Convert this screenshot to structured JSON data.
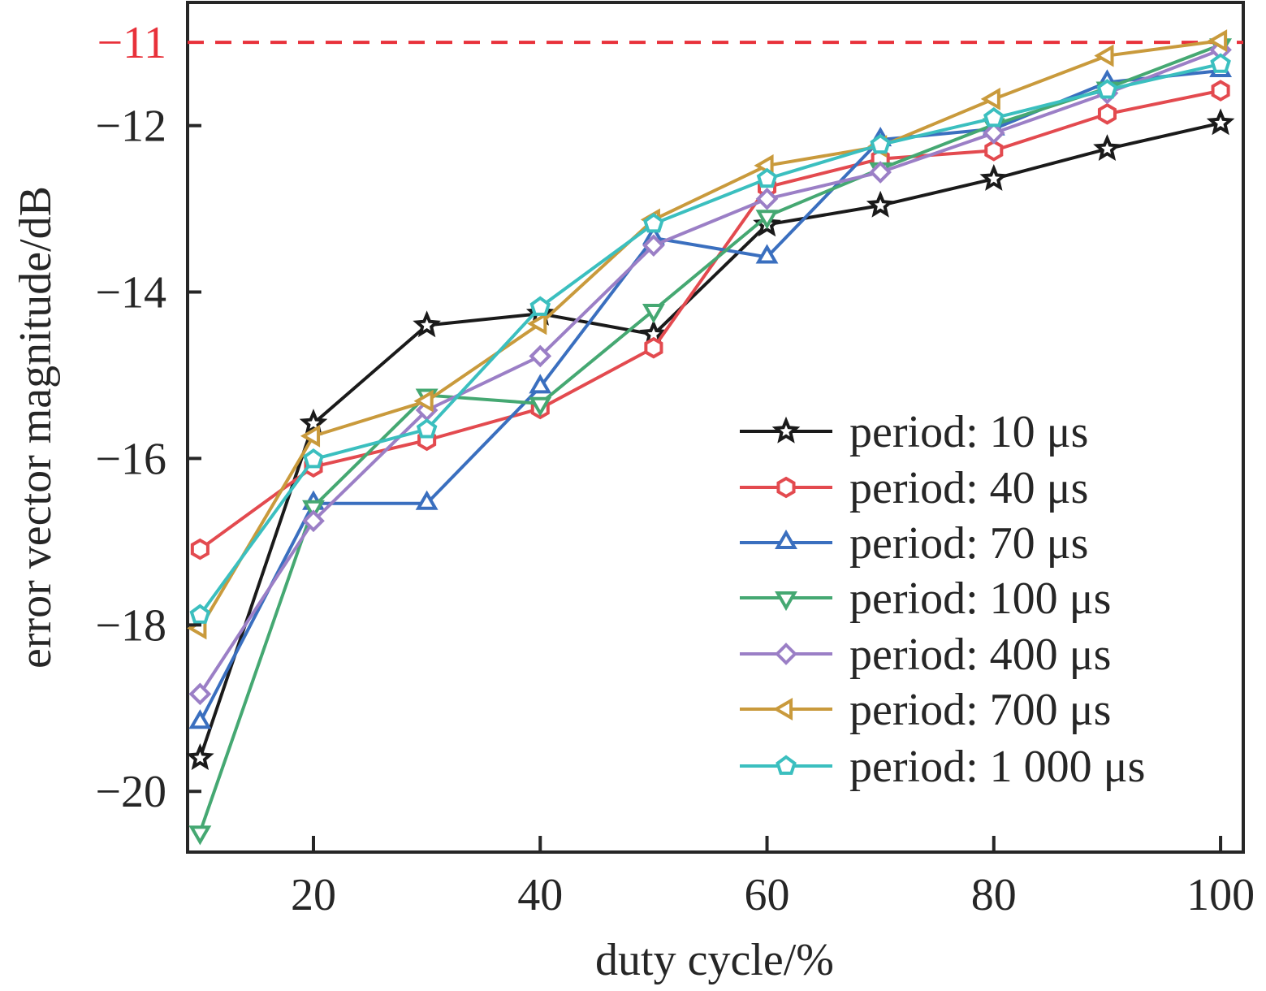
{
  "chart_data": {
    "type": "line",
    "title": "",
    "xlabel": "duty cycle/%",
    "ylabel": "error vector magnitude/dB",
    "xlim": [
      8.9,
      102
    ],
    "ylim": [
      -20.73,
      -10.52
    ],
    "xticks": [
      20,
      40,
      60,
      80,
      100
    ],
    "xtick_labels": [
      "20",
      "40",
      "60",
      "80",
      "100"
    ],
    "yticks": [
      -12,
      -14,
      -16,
      -18,
      -20
    ],
    "ytick_labels": [
      "−12",
      "−14",
      "−16",
      "−18",
      "−20"
    ],
    "grid": false,
    "legend_position": "lower-right",
    "threshold": {
      "value": -11,
      "label": "−11",
      "color": "#e8313a",
      "style": "dashed"
    },
    "x": [
      10,
      20,
      30,
      40,
      50,
      60,
      70,
      80,
      90,
      100
    ],
    "series": [
      {
        "name": "period: 10 μs",
        "color": "#1a1a1a",
        "marker": "star",
        "values": [
          -19.6,
          -15.58,
          -14.4,
          -14.26,
          -14.51,
          -13.19,
          -12.96,
          -12.64,
          -12.28,
          -11.97
        ]
      },
      {
        "name": "period: 40 μs",
        "color": "#e34a4f",
        "marker": "hexagon",
        "values": [
          -17.09,
          -16.1,
          -15.78,
          -15.4,
          -14.67,
          -12.74,
          -12.4,
          -12.3,
          -11.86,
          -11.58
        ]
      },
      {
        "name": "period: 70 μs",
        "color": "#3a6fbf",
        "marker": "triangle-up",
        "values": [
          -19.17,
          -16.54,
          -16.54,
          -15.14,
          -13.35,
          -13.58,
          -12.17,
          -12.04,
          -11.48,
          -11.34
        ]
      },
      {
        "name": "period: 100 μs",
        "color": "#45a872",
        "marker": "triangle-down",
        "values": [
          -20.49,
          -16.58,
          -15.24,
          -15.34,
          -14.22,
          -13.09,
          -12.52,
          -11.99,
          -11.55,
          -11.03
        ]
      },
      {
        "name": "period: 400 μs",
        "color": "#9b7fc6",
        "marker": "diamond",
        "values": [
          -18.83,
          -16.75,
          -15.42,
          -14.77,
          -13.44,
          -12.88,
          -12.56,
          -12.09,
          -11.61,
          -11.09
        ]
      },
      {
        "name": "period: 700 μs",
        "color": "#c99a3c",
        "marker": "triangle-left",
        "values": [
          -18.04,
          -15.73,
          -15.31,
          -14.38,
          -13.13,
          -12.48,
          -12.25,
          -11.68,
          -11.16,
          -10.98
        ]
      },
      {
        "name": "period: 1 000 μs",
        "color": "#3bbfbf",
        "marker": "pentagon",
        "values": [
          -17.88,
          -16.01,
          -15.65,
          -14.18,
          -13.18,
          -12.64,
          -12.23,
          -11.91,
          -11.57,
          -11.26
        ]
      }
    ]
  }
}
